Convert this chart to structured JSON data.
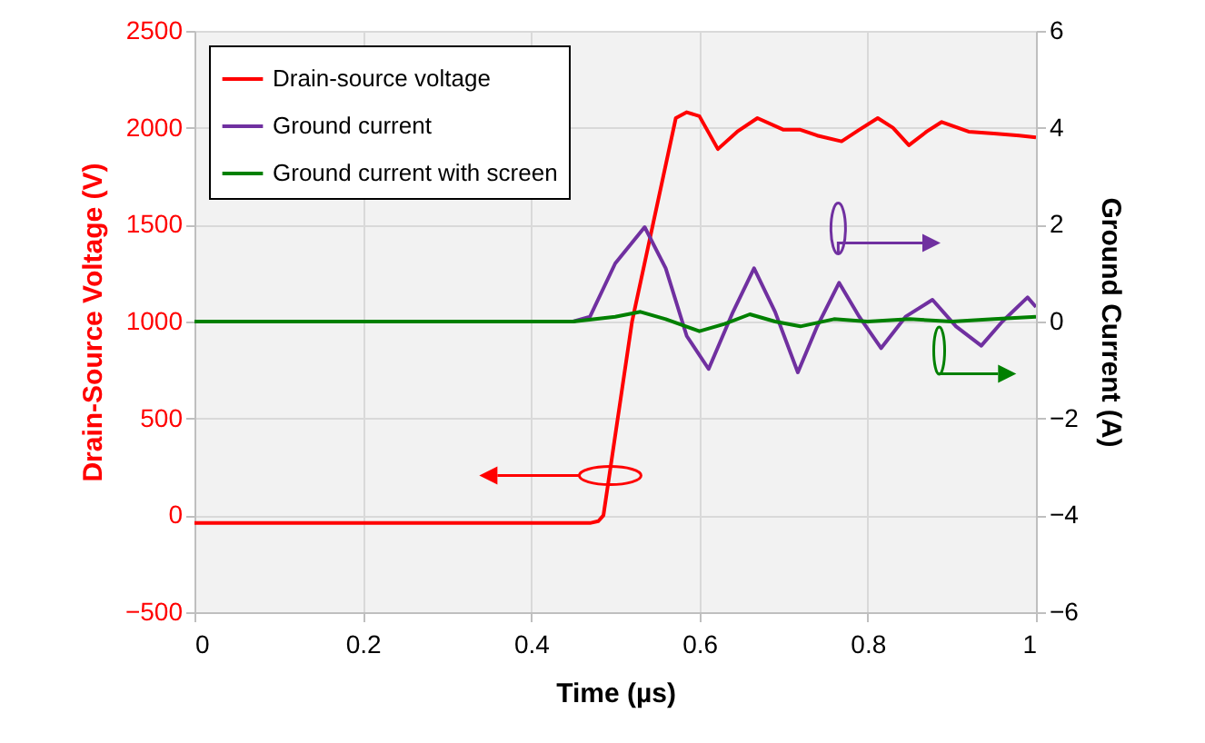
{
  "chart_data": {
    "type": "line",
    "xlabel": "Time (µs)",
    "ylabel": "Drain-Source Voltage (V)",
    "y2label": "Ground Current (A)",
    "xlim": [
      0,
      1
    ],
    "xticks": [
      0,
      0.2,
      0.4,
      0.6,
      0.8,
      1
    ],
    "ylim": [
      -500,
      2500
    ],
    "yticks": [
      -500,
      0,
      500,
      1000,
      1500,
      2000,
      2500
    ],
    "y2lim": [
      -6,
      6
    ],
    "y2ticks": [
      -6,
      -4,
      -2,
      0,
      2,
      4,
      6
    ],
    "grid": true,
    "legend": "top left",
    "marker": "none",
    "line_style": "solid",
    "series": [
      {
        "name": "Drain-source voltage",
        "color": "#ff0000",
        "x": [
          0,
          0.1,
          0.2,
          0.3,
          0.4,
          0.47,
          0.48,
          0.486,
          0.52,
          0.572,
          0.585,
          0.6,
          0.622,
          0.645,
          0.669,
          0.7,
          0.72,
          0.74,
          0.769,
          0.79,
          0.812,
          0.83,
          0.849,
          0.87,
          0.888,
          0.92,
          0.95,
          0.98,
          1
        ],
        "values": [
          -40,
          -40,
          -40,
          -40,
          -40,
          -40,
          -30,
          0,
          1000,
          2050,
          2080,
          2060,
          1890,
          1980,
          2050,
          1990,
          1990,
          1960,
          1930,
          1990,
          2050,
          2000,
          1910,
          1980,
          2030,
          1980,
          1970,
          1960,
          1950
        ]
      },
      {
        "name": "Ground current",
        "color": "#7030a0",
        "axis": "y2",
        "x": [
          0.45,
          0.47,
          0.5,
          0.535,
          0.56,
          0.585,
          0.611,
          0.64,
          0.665,
          0.69,
          0.717,
          0.74,
          0.766,
          0.79,
          0.816,
          0.845,
          0.877,
          0.905,
          0.935,
          0.96,
          0.99,
          1
        ],
        "values": [
          0,
          0.1,
          1.2,
          1.95,
          1.1,
          -0.3,
          -0.98,
          0.2,
          1.1,
          0.2,
          -1.05,
          -0.1,
          0.8,
          0.1,
          -0.55,
          0.1,
          0.45,
          -0.1,
          -0.5,
          0,
          0.5,
          0.3
        ]
      },
      {
        "name": "Ground current with screen",
        "color": "#008000",
        "axis": "y2",
        "x": [
          0,
          0.1,
          0.2,
          0.3,
          0.4,
          0.45,
          0.5,
          0.53,
          0.56,
          0.6,
          0.63,
          0.66,
          0.69,
          0.72,
          0.76,
          0.8,
          0.85,
          0.9,
          0.95,
          1
        ],
        "values": [
          0,
          0,
          0,
          0,
          0,
          0,
          0.1,
          0.2,
          0.05,
          -0.2,
          -0.05,
          0.15,
          0,
          -0.1,
          0.05,
          0,
          0.05,
          0,
          0.05,
          0.1
        ]
      }
    ]
  }
}
